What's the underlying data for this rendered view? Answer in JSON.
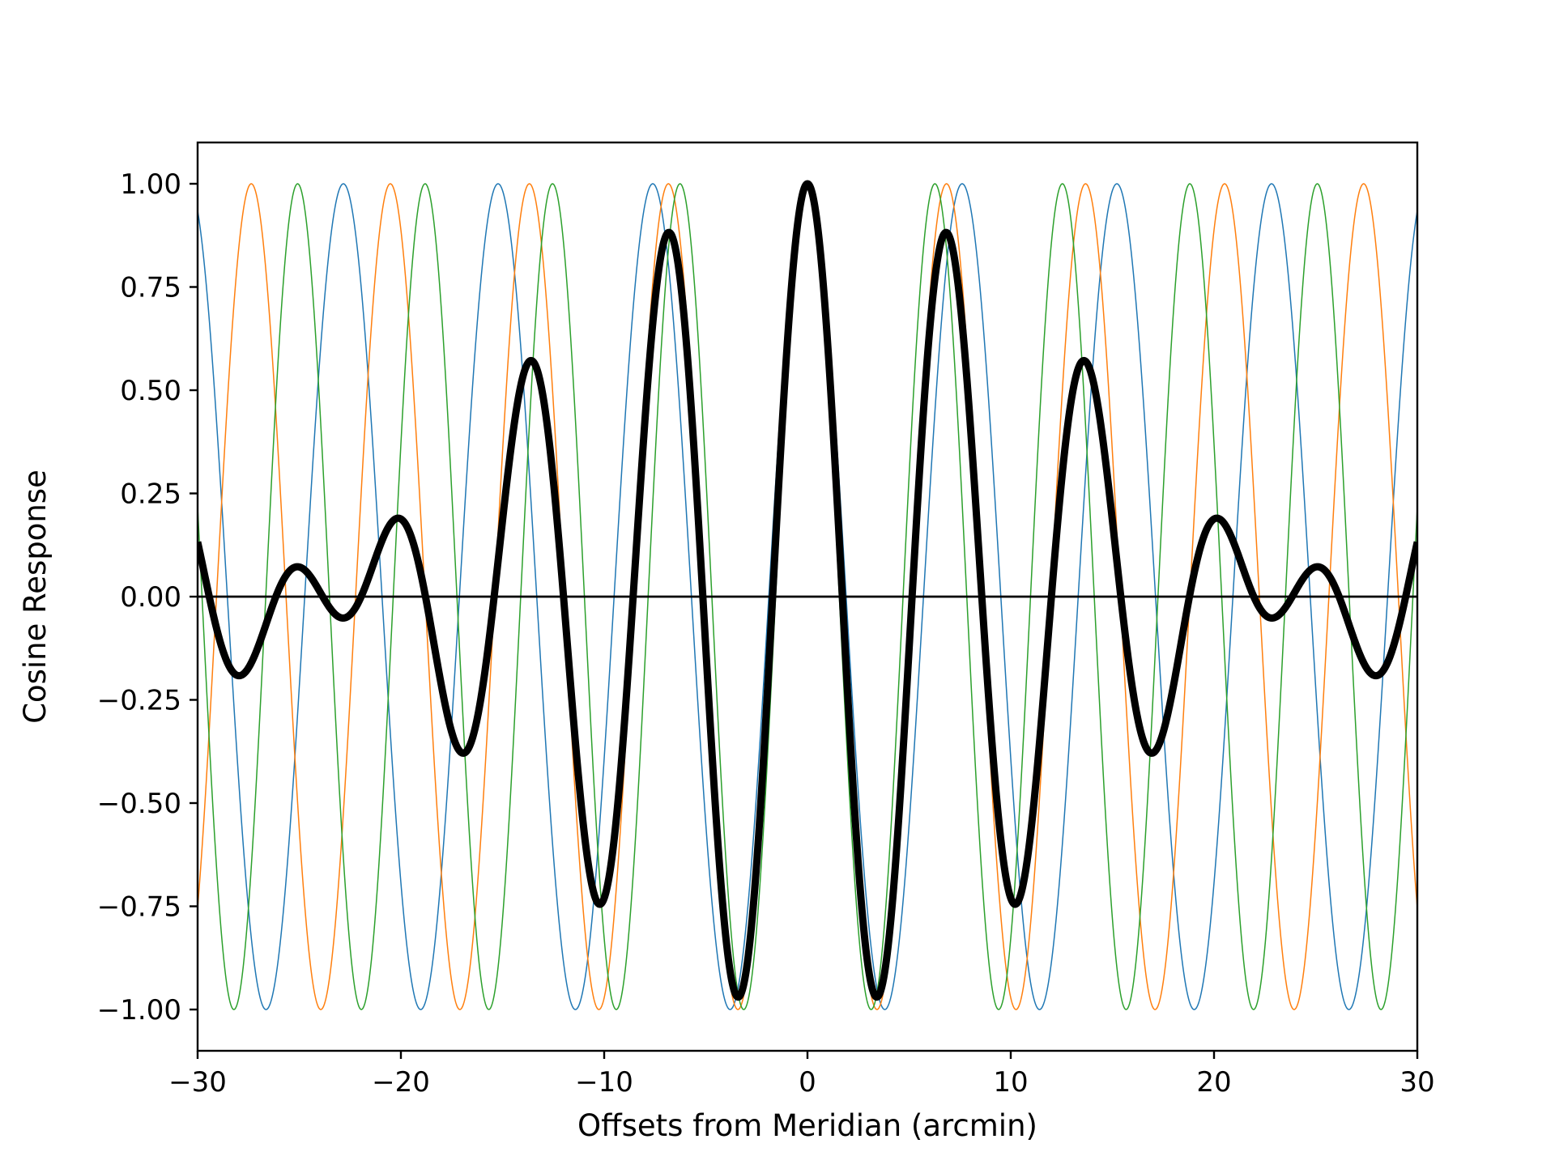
{
  "chart_data": {
    "type": "line",
    "title": "",
    "xlabel": "Offsets from Meridian (arcmin)",
    "ylabel": "Cosine Response",
    "xlim": [
      -30,
      30
    ],
    "ylim": [
      -1.1,
      1.1
    ],
    "xticks": [
      -30,
      -20,
      -10,
      0,
      10,
      20,
      30
    ],
    "xtick_labels": [
      "−30",
      "−20",
      "−10",
      "0",
      "10",
      "20",
      "30"
    ],
    "yticks": [
      1.0,
      0.75,
      0.5,
      0.25,
      0.0,
      -0.25,
      -0.5,
      -0.75,
      -1.0
    ],
    "ytick_labels": [
      "1.00",
      "0.75",
      "0.50",
      "0.25",
      "0.00",
      "−0.25",
      "−0.50",
      "−0.75",
      "−1.00"
    ],
    "grid": false,
    "legend": "none",
    "periods_arcmin": [
      7.61,
      6.84,
      6.27
    ],
    "series": [
      {
        "function": "cos(2*pi*x/7.61)",
        "color": "#1f77b4",
        "line": "thin"
      },
      {
        "function": "cos(2*pi*x/6.84)",
        "color": "#ff7f0e",
        "line": "thin"
      },
      {
        "function": "cos(2*pi*x/6.27)",
        "color": "#2ca02c",
        "line": "thin"
      },
      {
        "function": "mean of the three cosines",
        "color": "#000000",
        "line": "thick"
      }
    ],
    "reference_line": {
      "y": 0,
      "color": "#000000"
    }
  }
}
